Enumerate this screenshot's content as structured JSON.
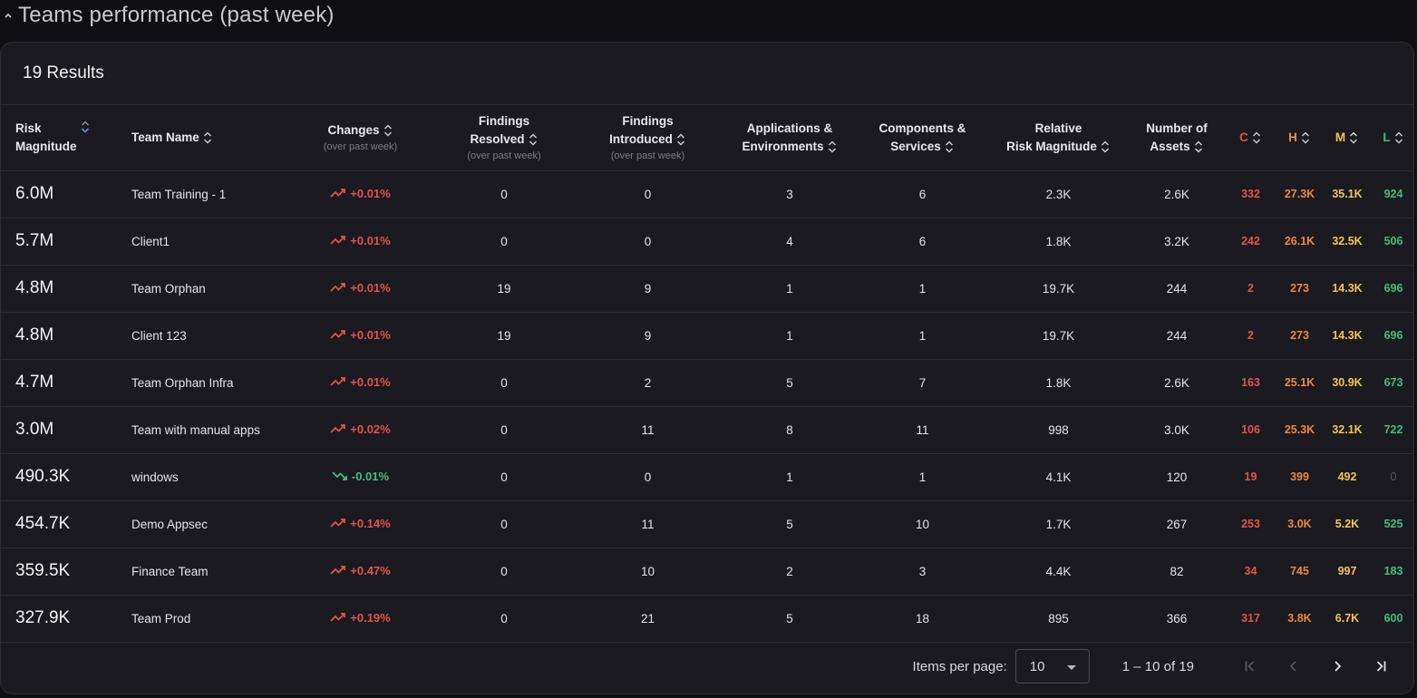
{
  "section": {
    "title": "Teams performance (past week)"
  },
  "results": {
    "label": "19 Results"
  },
  "columns": {
    "risk": [
      "Risk",
      "Magnitude"
    ],
    "team": "Team Name",
    "changes": {
      "label": "Changes",
      "sub": "(over past week)"
    },
    "resolved": {
      "label": [
        "Findings",
        "Resolved"
      ],
      "sub": "(over past week)"
    },
    "introduced": {
      "label": [
        "Findings",
        "Introduced"
      ],
      "sub": "(over past week)"
    },
    "apps": [
      "Applications &",
      "Environments"
    ],
    "components": [
      "Components &",
      "Services"
    ],
    "relative": [
      "Relative",
      "Risk Magnitude"
    ],
    "assets": [
      "Number of",
      "Assets"
    ],
    "c": "C",
    "h": "H",
    "m": "M",
    "l": "L"
  },
  "rows": [
    {
      "risk": "6.0M",
      "team": "Team Training - 1",
      "change": "+0.01%",
      "trend": "up",
      "resolved": "0",
      "introduced": "0",
      "apps": "3",
      "components": "6",
      "relative": "2.3K",
      "assets": "2.6K",
      "c": "332",
      "h": "27.3K",
      "m": "35.1K",
      "l": "924"
    },
    {
      "risk": "5.7M",
      "team": "Client1",
      "change": "+0.01%",
      "trend": "up",
      "resolved": "0",
      "introduced": "0",
      "apps": "4",
      "components": "6",
      "relative": "1.8K",
      "assets": "3.2K",
      "c": "242",
      "h": "26.1K",
      "m": "32.5K",
      "l": "506"
    },
    {
      "risk": "4.8M",
      "team": "Team Orphan",
      "change": "+0.01%",
      "trend": "up",
      "resolved": "19",
      "introduced": "9",
      "apps": "1",
      "components": "1",
      "relative": "19.7K",
      "assets": "244",
      "c": "2",
      "h": "273",
      "m": "14.3K",
      "l": "696"
    },
    {
      "risk": "4.8M",
      "team": "Client 123",
      "change": "+0.01%",
      "trend": "up",
      "resolved": "19",
      "introduced": "9",
      "apps": "1",
      "components": "1",
      "relative": "19.7K",
      "assets": "244",
      "c": "2",
      "h": "273",
      "m": "14.3K",
      "l": "696"
    },
    {
      "risk": "4.7M",
      "team": "Team Orphan Infra",
      "change": "+0.01%",
      "trend": "up",
      "resolved": "0",
      "introduced": "2",
      "apps": "5",
      "components": "7",
      "relative": "1.8K",
      "assets": "2.6K",
      "c": "163",
      "h": "25.1K",
      "m": "30.9K",
      "l": "673"
    },
    {
      "risk": "3.0M",
      "team": "Team with manual apps",
      "change": "+0.02%",
      "trend": "up",
      "resolved": "0",
      "introduced": "11",
      "apps": "8",
      "components": "11",
      "relative": "998",
      "assets": "3.0K",
      "c": "106",
      "h": "25.3K",
      "m": "32.1K",
      "l": "722"
    },
    {
      "risk": "490.3K",
      "team": "windows",
      "change": "-0.01%",
      "trend": "down",
      "resolved": "0",
      "introduced": "0",
      "apps": "1",
      "components": "1",
      "relative": "4.1K",
      "assets": "120",
      "c": "19",
      "h": "399",
      "m": "492",
      "l": "0"
    },
    {
      "risk": "454.7K",
      "team": "Demo Appsec",
      "change": "+0.14%",
      "trend": "up",
      "resolved": "0",
      "introduced": "11",
      "apps": "5",
      "components": "10",
      "relative": "1.7K",
      "assets": "267",
      "c": "253",
      "h": "3.0K",
      "m": "5.2K",
      "l": "525"
    },
    {
      "risk": "359.5K",
      "team": "Finance Team",
      "change": "+0.47%",
      "trend": "up",
      "resolved": "0",
      "introduced": "10",
      "apps": "2",
      "components": "3",
      "relative": "4.4K",
      "assets": "82",
      "c": "34",
      "h": "745",
      "m": "997",
      "l": "183"
    },
    {
      "risk": "327.9K",
      "team": "Team Prod",
      "change": "+0.19%",
      "trend": "up",
      "resolved": "0",
      "introduced": "21",
      "apps": "5",
      "components": "18",
      "relative": "895",
      "assets": "366",
      "c": "317",
      "h": "3.8K",
      "m": "6.7K",
      "l": "600"
    }
  ],
  "pagination": {
    "items_per_page_label": "Items per page:",
    "items_per_page_value": "10",
    "range": "1 – 10 of 19"
  },
  "colors": {
    "critical": "#e5534b",
    "high": "#f0883e",
    "medium": "#f5c451",
    "low": "#3fbf7f",
    "sort_active": "#6d7cf0"
  },
  "icons": {
    "collapse": "chevron-up-icon",
    "sort": "sort-arrows-icon",
    "trend_up": "trending-up-icon",
    "trend_down": "trending-down-icon",
    "select": "caret-down-icon",
    "first": "first-page-icon",
    "prev": "previous-page-icon",
    "next": "next-page-icon",
    "last": "last-page-icon"
  }
}
